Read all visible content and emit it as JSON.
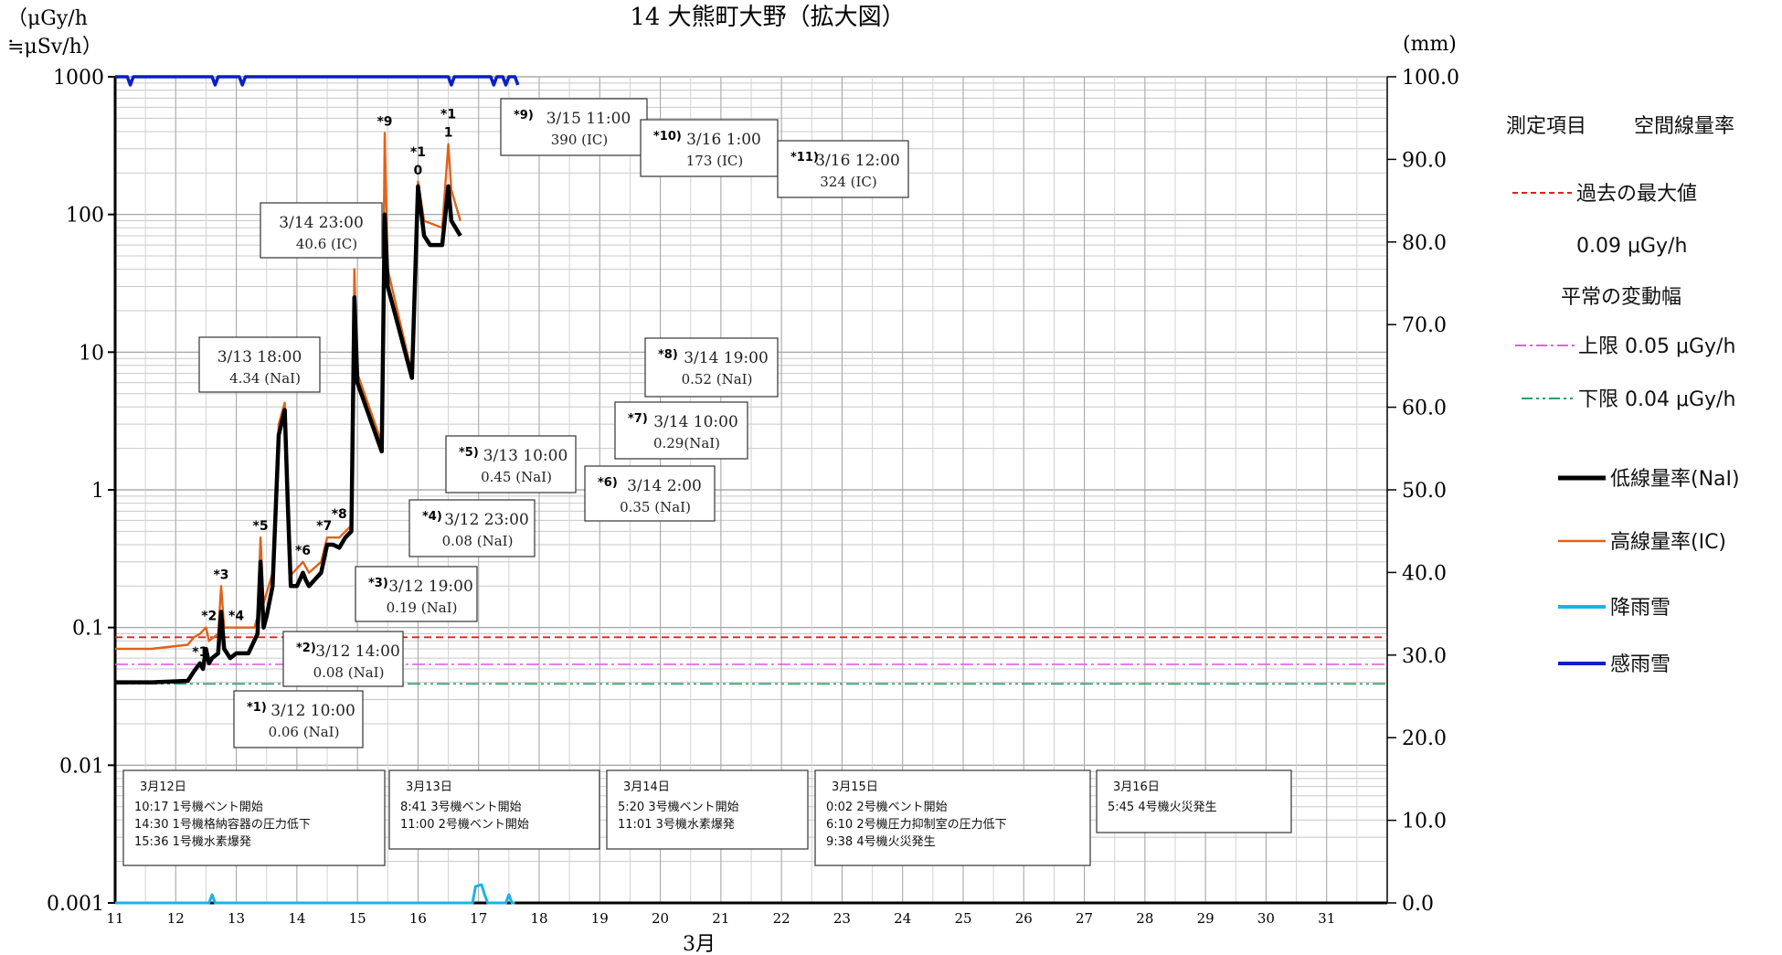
{
  "chart_data": {
    "type": "line",
    "title": "14 大熊町大野（拡大図）",
    "y_left_label_line1": "（μGy/h",
    "y_left_label_line2": "≒μSv/h）",
    "y_right_label": "(mm)",
    "xlabel": "3月",
    "y_left_scale": "log",
    "ylim_left": [
      0.001,
      1000
    ],
    "ylim_right": [
      0,
      100
    ],
    "xlim": [
      11,
      32
    ],
    "y_left_ticks": [
      "0.001",
      "0.01",
      "0.1",
      "1",
      "10",
      "100",
      "1000"
    ],
    "y_right_ticks": [
      "0.0",
      "10.0",
      "20.0",
      "30.0",
      "40.0",
      "50.0",
      "60.0",
      "70.0",
      "80.0",
      "90.0",
      "100.0"
    ],
    "x_ticks": [
      "11",
      "12",
      "13",
      "14",
      "15",
      "16",
      "17",
      "18",
      "19",
      "20",
      "21",
      "22",
      "23",
      "24",
      "25",
      "26",
      "27",
      "28",
      "29",
      "30",
      "31"
    ],
    "grid": true,
    "legend": {
      "header_item": "測定項目",
      "header_value": "空間線量率",
      "max_label": "過去の最大値",
      "max_value": "0.09 μGy/h",
      "range_label": "平常の変動幅",
      "upper_label": "上限 0.05 μGy/h",
      "lower_label": "下限 0.04 μGy/h",
      "nai_label": "低線量率(NaI)",
      "ic_label": "高線量率(IC)",
      "rain_label": "降雨雪",
      "sense_label": "感雨雪"
    },
    "reference_lines": {
      "past_max": 0.085,
      "upper": 0.054,
      "lower": 0.039
    },
    "colors": {
      "nai": "#000000",
      "ic": "#e0621a",
      "rain": "#19b4e6",
      "sense": "#0a1fc8",
      "past_max": "#e02020",
      "upper": "#e060e0",
      "lower": "#2aa060"
    },
    "series": [
      {
        "name": "低線量率(NaI)",
        "points": [
          [
            11.0,
            0.04
          ],
          [
            11.6,
            0.04
          ],
          [
            12.2,
            0.041
          ],
          [
            12.3,
            0.048
          ],
          [
            12.4,
            0.055
          ],
          [
            12.45,
            0.05
          ],
          [
            12.5,
            0.07
          ],
          [
            12.55,
            0.055
          ],
          [
            12.6,
            0.06
          ],
          [
            12.7,
            0.065
          ],
          [
            12.75,
            0.13
          ],
          [
            12.8,
            0.07
          ],
          [
            12.9,
            0.06
          ],
          [
            13.0,
            0.065
          ],
          [
            13.2,
            0.065
          ],
          [
            13.35,
            0.09
          ],
          [
            13.4,
            0.3
          ],
          [
            13.45,
            0.1
          ],
          [
            13.5,
            0.12
          ],
          [
            13.6,
            0.2
          ],
          [
            13.7,
            2.5
          ],
          [
            13.8,
            3.8
          ],
          [
            13.85,
            0.8
          ],
          [
            13.9,
            0.2
          ],
          [
            14.0,
            0.2
          ],
          [
            14.1,
            0.25
          ],
          [
            14.15,
            0.22
          ],
          [
            14.2,
            0.2
          ],
          [
            14.4,
            0.25
          ],
          [
            14.5,
            0.4
          ],
          [
            14.6,
            0.4
          ],
          [
            14.7,
            0.38
          ],
          [
            14.8,
            0.45
          ],
          [
            14.9,
            0.5
          ],
          [
            14.95,
            25
          ],
          [
            15.0,
            6
          ],
          [
            15.4,
            1.9
          ],
          [
            15.45,
            100
          ],
          [
            15.5,
            30
          ],
          [
            15.9,
            6.5
          ],
          [
            16.0,
            160
          ],
          [
            16.1,
            70
          ],
          [
            16.2,
            60
          ],
          [
            16.4,
            60
          ],
          [
            16.5,
            160
          ],
          [
            16.55,
            90
          ],
          [
            16.7,
            70
          ]
        ]
      },
      {
        "name": "高線量率(IC)",
        "points": [
          [
            11.0,
            0.07
          ],
          [
            11.6,
            0.07
          ],
          [
            12.2,
            0.075
          ],
          [
            12.3,
            0.085
          ],
          [
            12.4,
            0.09
          ],
          [
            12.5,
            0.1
          ],
          [
            12.55,
            0.08
          ],
          [
            12.7,
            0.09
          ],
          [
            12.75,
            0.2
          ],
          [
            12.8,
            0.1
          ],
          [
            13.0,
            0.1
          ],
          [
            13.3,
            0.1
          ],
          [
            13.35,
            0.12
          ],
          [
            13.4,
            0.45
          ],
          [
            13.45,
            0.15
          ],
          [
            13.6,
            0.25
          ],
          [
            13.7,
            3
          ],
          [
            13.8,
            4.3
          ],
          [
            13.85,
            1
          ],
          [
            13.9,
            0.24
          ],
          [
            14.1,
            0.3
          ],
          [
            14.2,
            0.25
          ],
          [
            14.4,
            0.3
          ],
          [
            14.5,
            0.45
          ],
          [
            14.7,
            0.45
          ],
          [
            14.9,
            0.55
          ],
          [
            14.95,
            40
          ],
          [
            15.0,
            7
          ],
          [
            15.4,
            2.2
          ],
          [
            15.45,
            390
          ],
          [
            15.5,
            40
          ],
          [
            15.9,
            7
          ],
          [
            16.0,
            173
          ],
          [
            16.1,
            90
          ],
          [
            16.4,
            80
          ],
          [
            16.5,
            324
          ],
          [
            16.55,
            150
          ],
          [
            16.7,
            90
          ]
        ]
      },
      {
        "name": "降雨雪",
        "points": [
          [
            11.0,
            0.0
          ],
          [
            12.55,
            0.0
          ],
          [
            12.6,
            1.0
          ],
          [
            12.65,
            0.0
          ],
          [
            16.9,
            0.0
          ],
          [
            16.95,
            2.0
          ],
          [
            17.05,
            2.2
          ],
          [
            17.1,
            1.0
          ],
          [
            17.15,
            0.0
          ],
          [
            17.45,
            0.0
          ],
          [
            17.5,
            1.0
          ],
          [
            17.55,
            0.0
          ],
          [
            17.6,
            0.0
          ]
        ]
      },
      {
        "name": "感雨雪",
        "points": [
          [
            11.0,
            100
          ],
          [
            11.2,
            100
          ],
          [
            11.25,
            99
          ],
          [
            11.3,
            100
          ],
          [
            12.6,
            100
          ],
          [
            12.65,
            99
          ],
          [
            12.7,
            100
          ],
          [
            13.05,
            100
          ],
          [
            13.1,
            99
          ],
          [
            13.15,
            100
          ],
          [
            16.5,
            100
          ],
          [
            16.55,
            99
          ],
          [
            16.6,
            100
          ],
          [
            17.2,
            100
          ],
          [
            17.25,
            99
          ],
          [
            17.3,
            100
          ],
          [
            17.4,
            100
          ],
          [
            17.45,
            99
          ],
          [
            17.5,
            100
          ],
          [
            17.6,
            100
          ],
          [
            17.65,
            99
          ]
        ]
      }
    ],
    "markers": [
      {
        "label": "*1",
        "x": 12.4,
        "y": 0.055
      },
      {
        "label": "*2",
        "x": 12.55,
        "y": 0.1
      },
      {
        "label": "*3",
        "x": 12.75,
        "y": 0.2
      },
      {
        "label": "*4",
        "x": 13.0,
        "y": 0.1
      },
      {
        "label": "*5",
        "x": 13.4,
        "y": 0.45
      },
      {
        "label": "*6",
        "x": 14.1,
        "y": 0.3
      },
      {
        "label": "*7",
        "x": 14.45,
        "y": 0.45
      },
      {
        "label": "*8",
        "x": 14.7,
        "y": 0.55
      },
      {
        "label": "*9",
        "x": 15.45,
        "y": 390
      },
      {
        "label": "*1\n0",
        "x": 16.0,
        "y": 173
      },
      {
        "label": "*1\n1",
        "x": 16.5,
        "y": 324
      }
    ],
    "annotations": [
      {
        "tag": "*1)",
        "time": "3/12 10:00",
        "value": "0.06 (NaI)"
      },
      {
        "tag": "*2)",
        "time": "3/12 14:00",
        "value": "0.08 (NaI)"
      },
      {
        "tag": "*3)",
        "time": "3/12 19:00",
        "value": "0.19 (NaI)"
      },
      {
        "tag": "*4)",
        "time": "3/12 23:00",
        "value": "0.08 (NaI)"
      },
      {
        "tag": "*5)",
        "time": "3/13 10:00",
        "value": "0.45 (NaI)"
      },
      {
        "tag": "*6)",
        "time": "3/14 2:00",
        "value": "0.35 (NaI)"
      },
      {
        "tag": "*7)",
        "time": "3/14 10:00",
        "value": "0.29(NaI)"
      },
      {
        "tag": "*8)",
        "time": "3/14 19:00",
        "value": "0.52 (NaI)"
      },
      {
        "tag": "*9)",
        "time": "3/15 11:00",
        "value": "390 (IC)"
      },
      {
        "tag": "*10)",
        "time": "3/16 1:00",
        "value": "173 (IC)"
      },
      {
        "tag": "*11)",
        "time": "3/16 12:00",
        "value": "324 (IC)"
      },
      {
        "tag": "",
        "time": "3/13 18:00",
        "value": "4.34 (NaI)"
      },
      {
        "tag": "",
        "time": "3/14 23:00",
        "value": "40.6 (IC)"
      }
    ],
    "events": [
      {
        "date": "3月12日",
        "lines": [
          "10:17 1号機ベント開始",
          "14:30 1号機格納容器の圧力低下",
          "15:36 1号機水素爆発"
        ]
      },
      {
        "date": "3月13日",
        "lines": [
          "8:41 3号機ベント開始",
          "11:00 2号機ベント開始"
        ]
      },
      {
        "date": "3月14日",
        "lines": [
          "5:20 3号機ベント開始",
          "11:01 3号機水素爆発"
        ]
      },
      {
        "date": "3月15日",
        "lines": [
          "0:02 2号機ベント開始",
          "6:10 2号機圧力抑制室の圧力低下",
          "9:38 4号機火災発生"
        ]
      },
      {
        "date": "3月16日",
        "lines": [
          "5:45 4号機火災発生"
        ]
      }
    ]
  }
}
